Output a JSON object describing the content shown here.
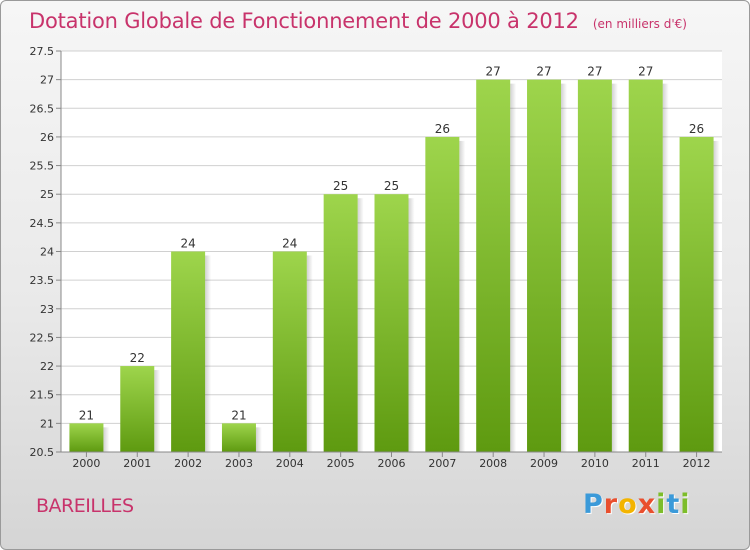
{
  "header": {
    "title": "Dotation Globale de Fonctionnement de 2000 à 2012",
    "unit": "(en milliers d'€)"
  },
  "footer": {
    "commune": "BAREILLES",
    "brand_letters": [
      "P",
      "r",
      "o",
      "x",
      "i",
      "t",
      "i"
    ],
    "brand_colors": [
      "#3b9ad9",
      "#e94f2e",
      "#f3b400",
      "#e94f2e",
      "#7dbd2a",
      "#3b9ad9",
      "#7dbd2a"
    ]
  },
  "colors": {
    "title": "#c8336b",
    "bar_top": "#9ed54c",
    "bar_bottom": "#5e9a10",
    "grid": "#d0d0d0"
  },
  "chart_data": {
    "type": "bar",
    "categories": [
      "2000",
      "2001",
      "2002",
      "2003",
      "2004",
      "2005",
      "2006",
      "2007",
      "2008",
      "2009",
      "2010",
      "2011",
      "2012"
    ],
    "values": [
      21,
      22,
      24,
      21,
      24,
      25,
      25,
      26,
      27,
      27,
      27,
      27,
      26
    ],
    "ylim": [
      20.5,
      27.5
    ],
    "yticks": [
      "20.5",
      "21",
      "21.5",
      "22",
      "22.5",
      "23",
      "23.5",
      "24",
      "24.5",
      "25",
      "25.5",
      "26",
      "26.5",
      "27",
      "27.5"
    ],
    "grid": true
  }
}
